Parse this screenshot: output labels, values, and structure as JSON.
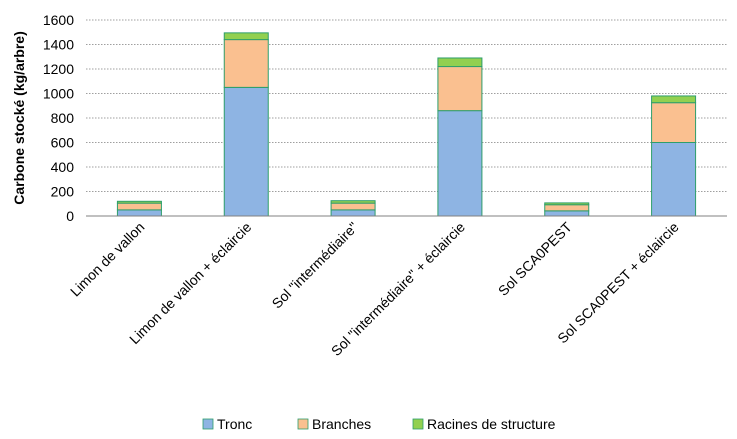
{
  "chart_data": {
    "type": "bar",
    "stacked": true,
    "title": "",
    "xlabel": "",
    "ylabel": "Carbone stocké (kg/arbre)",
    "ylim": [
      0,
      1600
    ],
    "yticks": [
      0,
      200,
      400,
      600,
      800,
      1000,
      1200,
      1400,
      1600
    ],
    "grid": "horizontal",
    "legend_position": "bottom",
    "categories": [
      "Limon de vallon",
      "Limon de vallon + éclaircie",
      "Sol \"intermédiaire\"",
      "Sol \"intermédiaire\" + éclaircie",
      "Sol SCA0PEST",
      "Sol SCA0PEST + éclaircie"
    ],
    "series": [
      {
        "name": "Tronc",
        "color": "#8EB4E3",
        "values": [
          50,
          1050,
          50,
          860,
          42,
          600
        ]
      },
      {
        "name": "Branches",
        "color": "#FAC090",
        "values": [
          55,
          390,
          55,
          360,
          50,
          325
        ]
      },
      {
        "name": "Racines de structure",
        "color": "#92D050",
        "values": [
          15,
          55,
          20,
          70,
          15,
          55
        ]
      }
    ]
  }
}
